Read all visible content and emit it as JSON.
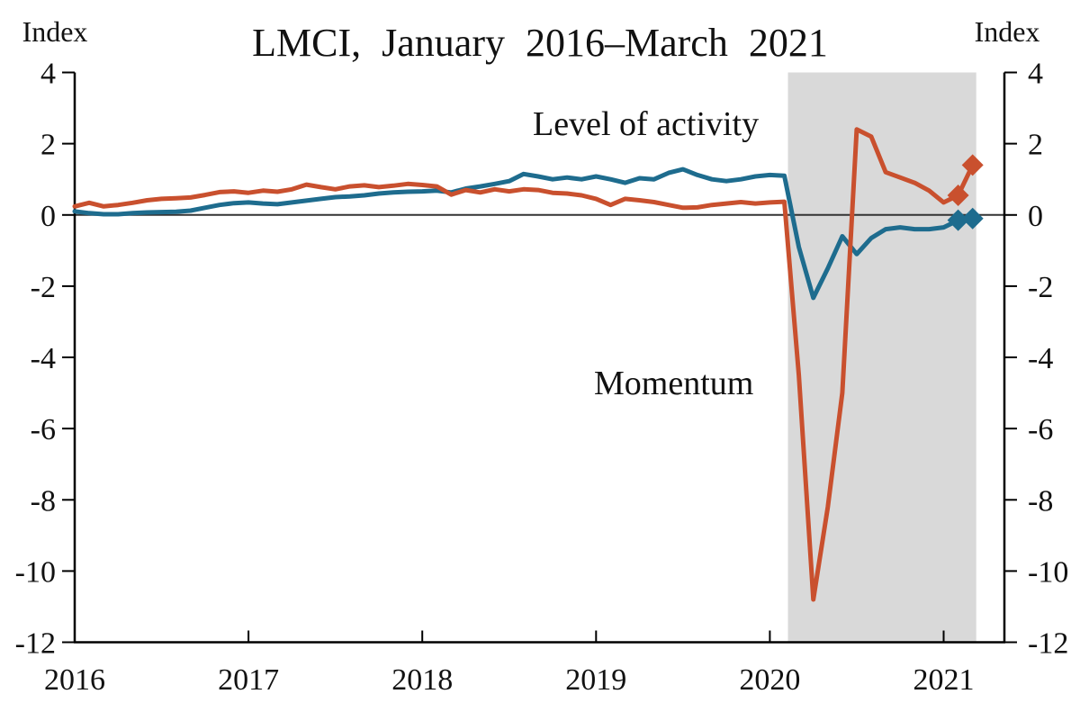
{
  "colors": {
    "level": "#1e6c8e",
    "momentum": "#c9502e",
    "shading": "#d9d9d9",
    "axis": "#000000",
    "zero_line": "#333333",
    "background": "#ffffff",
    "text": "#111111"
  },
  "chart_data": {
    "type": "line",
    "title": "LMCI, January 2016–March 2021",
    "y_axis_label_left": "Index",
    "y_axis_label_right": "Index",
    "ylim": [
      -12,
      4
    ],
    "y_ticks": [
      4,
      2,
      0,
      -2,
      -4,
      -6,
      -8,
      -10,
      -12
    ],
    "x_tick_labels": [
      "2016",
      "2017",
      "2018",
      "2019",
      "2020",
      "2021"
    ],
    "x_unit": "monthly",
    "x_range": {
      "start": "2016-01",
      "end": "2021-03"
    },
    "grid": false,
    "zero_line": true,
    "shaded_region": {
      "from": "2020-02",
      "to": "2021-03"
    },
    "series": [
      {
        "name": "Level of activity",
        "color": "#1e6c8e",
        "marker_last_points": 2,
        "values": [
          0.1,
          0.05,
          0.02,
          0.02,
          0.05,
          0.07,
          0.08,
          0.09,
          0.12,
          0.2,
          0.28,
          0.33,
          0.35,
          0.32,
          0.3,
          0.35,
          0.4,
          0.45,
          0.5,
          0.52,
          0.55,
          0.6,
          0.63,
          0.65,
          0.66,
          0.68,
          0.63,
          0.74,
          0.8,
          0.87,
          0.95,
          1.15,
          1.08,
          1.0,
          1.05,
          1.0,
          1.08,
          1.0,
          0.9,
          1.03,
          1.0,
          1.18,
          1.28,
          1.12,
          1.0,
          0.95,
          1.0,
          1.08,
          1.12,
          1.1,
          -0.9,
          -2.33,
          -1.5,
          -0.6,
          -1.1,
          -0.65,
          -0.4,
          -0.35,
          -0.4,
          -0.4,
          -0.35,
          -0.15,
          -0.1
        ]
      },
      {
        "name": "Momentum",
        "color": "#c9502e",
        "marker_last_points": 2,
        "values": [
          0.24,
          0.34,
          0.24,
          0.28,
          0.34,
          0.41,
          0.45,
          0.47,
          0.49,
          0.56,
          0.64,
          0.66,
          0.62,
          0.68,
          0.65,
          0.72,
          0.85,
          0.78,
          0.72,
          0.8,
          0.83,
          0.78,
          0.82,
          0.87,
          0.84,
          0.8,
          0.57,
          0.7,
          0.63,
          0.72,
          0.66,
          0.72,
          0.7,
          0.62,
          0.6,
          0.55,
          0.45,
          0.28,
          0.45,
          0.41,
          0.36,
          0.28,
          0.2,
          0.21,
          0.28,
          0.32,
          0.36,
          0.32,
          0.35,
          0.37,
          -4.5,
          -10.8,
          -8.2,
          -5.0,
          2.4,
          2.2,
          1.2,
          1.05,
          0.9,
          0.68,
          0.35,
          0.55,
          1.4
        ]
      }
    ]
  }
}
